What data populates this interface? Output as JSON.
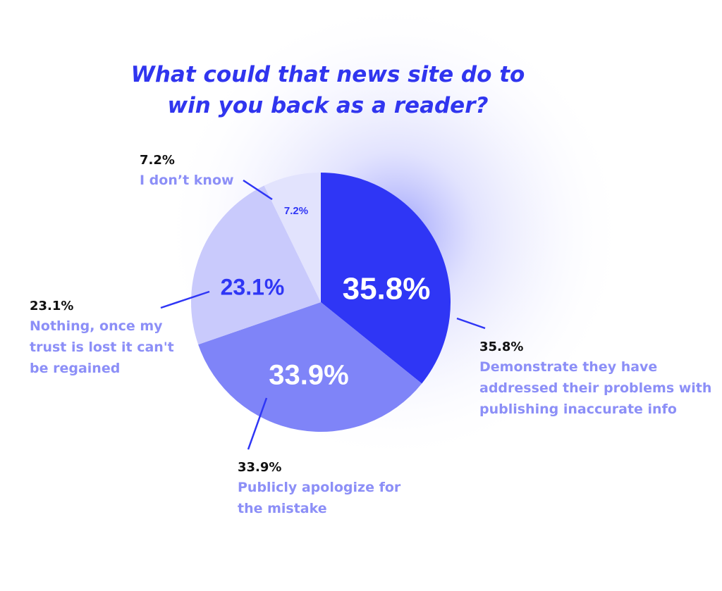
{
  "chart_data": {
    "type": "pie",
    "title": "What could that news site do to win you back as a reader?",
    "categories": [
      "Demonstrate they have addressed their problems with publishing inaccurate info",
      "Publicly apologize for the mistake",
      "Nothing, once my trust is lost it can't be regained",
      "I don’t know"
    ],
    "values": [
      35.8,
      33.9,
      23.1,
      7.2
    ],
    "value_labels": [
      "35.8%",
      "33.9%",
      "23.1%",
      "7.2%"
    ],
    "colors": [
      "#2f36f5",
      "#7f84f8",
      "#c9cafc",
      "#e2e3fd"
    ]
  }
}
